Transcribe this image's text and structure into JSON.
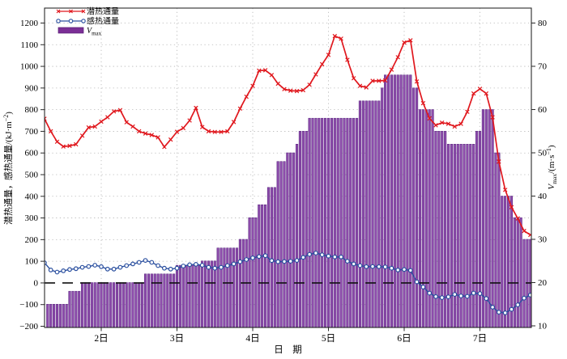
{
  "figure": {
    "background": "#ffffff",
    "frame_color": "#2b2b2b",
    "grid_color": "#b5b5b5"
  },
  "chart_data": {
    "type": "combo",
    "x_axis": {
      "label": "日　期",
      "start_day": 1.25,
      "end_day": 7.667,
      "ticks": [
        {
          "day": 2,
          "label": "2日"
        },
        {
          "day": 3,
          "label": "3日"
        },
        {
          "day": 4,
          "label": "4日"
        },
        {
          "day": 5,
          "label": "5日"
        },
        {
          "day": 6,
          "label": "6日"
        },
        {
          "day": 7,
          "label": "7日"
        }
      ]
    },
    "left_axis": {
      "label": "潜热通量，感热通量/(kJ·m⁻²)",
      "label_parts": {
        "main": "潜热通量，感热通量/(kJ·m",
        "sup": "-2",
        "tail": ")"
      },
      "min": -200,
      "max": 1200,
      "tick_step": 100,
      "tick_labels": [
        "-200",
        "-100",
        "0",
        "100",
        "200",
        "300",
        "400",
        "500",
        "600",
        "700",
        "800",
        "900",
        "1000",
        "1100",
        "1200"
      ]
    },
    "right_axis": {
      "label": "Vmax/(m·s⁻¹)",
      "label_parts": {
        "var": "V",
        "sub": "max",
        "mid": "/(m·s",
        "sup": "-1",
        "tail": ")"
      },
      "min": 10,
      "max": 80,
      "tick_step": 10,
      "tick_labels": [
        "10",
        "20",
        "30",
        "40",
        "50",
        "60",
        "70",
        "80"
      ]
    },
    "zero_line": {
      "value": 0,
      "style": "dashed",
      "color": "#111111"
    },
    "legend": [
      {
        "label": "潜热通量",
        "swatch": "line-x",
        "color": "#e0181e"
      },
      {
        "label": "感热通量",
        "swatch": "line-circle",
        "color": "#2a4f9f"
      },
      {
        "label": "Vmax",
        "label_parts": {
          "var": "V",
          "sub": "max"
        },
        "swatch": "bar",
        "color": "#7b2f96"
      }
    ],
    "series": [
      {
        "name": "潜热通量",
        "type": "line",
        "marker": "x",
        "color": "#e0181e",
        "axis": "left",
        "start_day": 1.25,
        "step_days": 0.0833333,
        "values": [
          758,
          700,
          652,
          630,
          633,
          640,
          680,
          718,
          722,
          745,
          765,
          792,
          798,
          742,
          722,
          700,
          690,
          683,
          672,
          628,
          662,
          698,
          715,
          750,
          808,
          720,
          700,
          697,
          697,
          700,
          743,
          805,
          860,
          910,
          980,
          982,
          960,
          920,
          895,
          888,
          886,
          890,
          915,
          963,
          1010,
          1053,
          1140,
          1128,
          1030,
          945,
          910,
          903,
          933,
          933,
          935,
          985,
          1042,
          1110,
          1120,
          930,
          830,
          760,
          728,
          740,
          735,
          722,
          735,
          790,
          875,
          896,
          875,
          765,
          560,
          430,
          350,
          298,
          240,
          222
        ]
      },
      {
        "name": "感热通量",
        "type": "line",
        "marker": "circle-open",
        "color": "#2a4f9f",
        "axis": "left",
        "start_day": 1.25,
        "step_days": 0.0833333,
        "values": [
          93,
          60,
          50,
          56,
          62,
          66,
          72,
          76,
          82,
          75,
          64,
          64,
          72,
          80,
          88,
          95,
          104,
          95,
          80,
          68,
          64,
          68,
          78,
          84,
          86,
          82,
          72,
          68,
          72,
          80,
          88,
          98,
          108,
          116,
          122,
          126,
          103,
          98,
          99,
          100,
          104,
          118,
          132,
          138,
          130,
          124,
          120,
          120,
          100,
          88,
          80,
          75,
          76,
          75,
          74,
          68,
          60,
          62,
          58,
          5,
          -19,
          -47,
          -63,
          -68,
          -64,
          -53,
          -60,
          -62,
          -47,
          -49,
          -72,
          -112,
          -135,
          -138,
          -122,
          -101,
          -70,
          -56
        ]
      },
      {
        "name": "Vmax",
        "type": "bar",
        "color": "#8e4dac",
        "edge_color": "#5a2580",
        "axis": "right",
        "baseline": 10,
        "start_day": 1.2916667,
        "step_days": 0.0416667,
        "values": [
          15,
          15,
          15,
          15,
          15,
          15,
          15,
          18,
          18,
          18,
          18,
          20,
          20,
          20,
          20,
          20,
          20,
          20,
          20,
          20,
          20,
          20,
          20,
          20,
          20,
          20,
          20,
          20,
          20,
          20,
          20,
          22,
          22,
          22,
          22,
          22,
          22,
          22,
          22,
          22,
          22,
          24,
          24,
          24,
          24,
          24,
          24,
          24,
          24,
          25,
          25,
          25,
          25,
          25,
          28,
          28,
          28,
          28,
          28,
          28,
          28,
          30,
          30,
          30,
          35,
          35,
          35,
          38,
          38,
          38,
          42,
          42,
          42,
          48,
          48,
          48,
          50,
          50,
          50,
          52,
          55,
          55,
          55,
          58,
          58,
          58,
          58,
          58,
          58,
          58,
          58,
          58,
          58,
          58,
          58,
          58,
          58,
          58,
          58,
          62,
          62,
          62,
          62,
          62,
          62,
          62,
          65,
          68,
          68,
          68,
          68,
          68,
          68,
          68,
          68,
          68,
          65,
          65,
          60,
          60,
          60,
          60,
          60,
          55,
          55,
          55,
          55,
          52,
          52,
          52,
          52,
          52,
          52,
          52,
          52,
          52,
          55,
          55,
          60,
          60,
          60,
          60,
          50,
          50,
          40,
          40,
          40,
          40,
          35,
          35,
          35,
          30,
          30,
          30
        ]
      }
    ]
  }
}
